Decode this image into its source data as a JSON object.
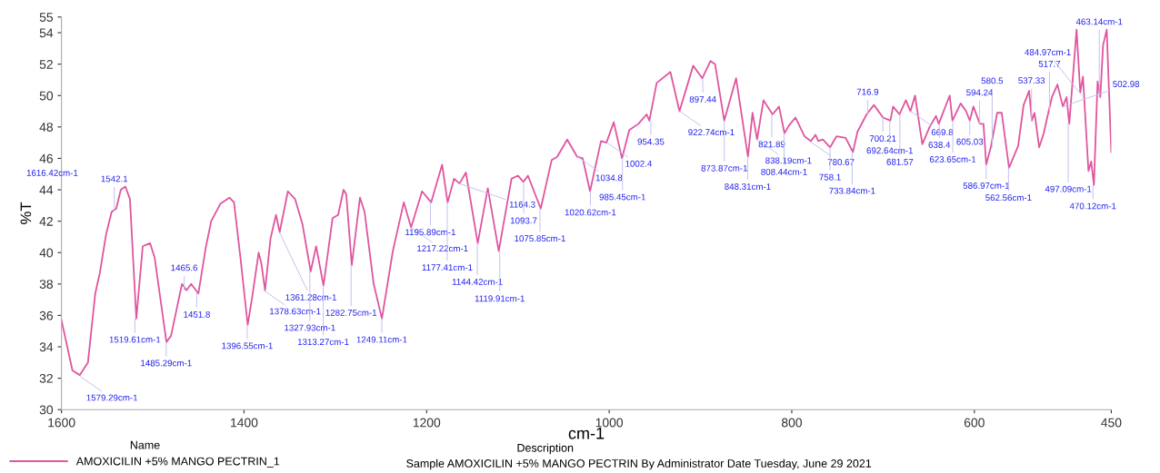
{
  "chart_data": {
    "type": "line",
    "xlabel": "cm-1",
    "ylabel": "%T",
    "legend_title": "Name",
    "legend": "bottom",
    "grid": false,
    "marker": "none",
    "line_style": "solid",
    "xlim": [
      1600,
      450
    ],
    "xticks": [
      1600,
      1400,
      1200,
      1000,
      800,
      600,
      450
    ],
    "ylim": [
      30,
      55
    ],
    "yticks": [
      30,
      32,
      34,
      36,
      38,
      40,
      42,
      44,
      46,
      48,
      50,
      52,
      54,
      55
    ],
    "series": [
      {
        "name": "AMOXICILIN +5% MANGO PECTRIN_1",
        "color": "#e0559f",
        "x": [
          1600,
          1588,
          1580,
          1571,
          1563,
          1558,
          1551,
          1545,
          1540,
          1535,
          1530,
          1525,
          1518,
          1511,
          1503,
          1498,
          1491,
          1485,
          1480,
          1468,
          1463,
          1458,
          1450,
          1442,
          1436,
          1426,
          1416,
          1411,
          1404,
          1396,
          1391,
          1384,
          1381,
          1377,
          1371,
          1365,
          1361,
          1352,
          1344,
          1336,
          1327,
          1321,
          1313,
          1303,
          1297,
          1291,
          1288,
          1282,
          1273,
          1268,
          1258,
          1249,
          1237,
          1225,
          1217,
          1205,
          1195,
          1183,
          1177,
          1170,
          1164,
          1157,
          1144,
          1133,
          1121,
          1107,
          1100,
          1094,
          1089,
          1075,
          1063,
          1057,
          1046,
          1035,
          1029,
          1021,
          1009,
          1003,
          995,
          986,
          978,
          968,
          959,
          956,
          948,
          933,
          923,
          908,
          898,
          889,
          884,
          874,
          861,
          848,
          843,
          838,
          831,
          821,
          814,
          808,
          803,
          796,
          786,
          779,
          774,
          771,
          766,
          758,
          751,
          741,
          733,
          728,
          718,
          710,
          700,
          692,
          689,
          682,
          675,
          670,
          665,
          657,
          649,
          642,
          639,
          627,
          624,
          615,
          609,
          605,
          601,
          594,
          590,
          587,
          582,
          575,
          570,
          562,
          552,
          546,
          540,
          537,
          534,
          529,
          524,
          519,
          515,
          509,
          503,
          499,
          496,
          488,
          484,
          481,
          475,
          472,
          469,
          465,
          462,
          459,
          455,
          450
        ],
        "values": [
          35.7,
          32.5,
          32.2,
          33.0,
          37.4,
          38.7,
          41.2,
          42.6,
          42.8,
          44.0,
          44.2,
          43.4,
          35.8,
          40.4,
          40.6,
          39.7,
          36.8,
          34.3,
          34.7,
          38.0,
          37.6,
          38.0,
          37.4,
          40.3,
          42.0,
          43.1,
          43.5,
          43.2,
          39.7,
          35.4,
          37.2,
          40.0,
          39.3,
          37.6,
          40.9,
          42.4,
          41.3,
          43.9,
          43.4,
          41.8,
          38.8,
          40.4,
          37.9,
          42.2,
          42.4,
          44.0,
          43.7,
          39.2,
          43.5,
          42.6,
          38.0,
          35.8,
          40.1,
          43.2,
          41.6,
          43.9,
          43.2,
          45.6,
          43.2,
          44.7,
          44.4,
          45.1,
          40.6,
          44.1,
          40.1,
          44.7,
          44.9,
          44.5,
          44.9,
          42.8,
          45.9,
          46.1,
          47.2,
          46.1,
          46.0,
          43.9,
          47.1,
          47.0,
          48.3,
          46.0,
          47.8,
          48.2,
          48.8,
          48.4,
          50.8,
          51.5,
          49.0,
          51.9,
          51.1,
          52.2,
          52.0,
          48.4,
          51.1,
          46.1,
          48.9,
          47.2,
          49.7,
          48.8,
          49.3,
          47.6,
          48.1,
          48.6,
          47.4,
          47.1,
          47.5,
          47.1,
          47.2,
          46.7,
          47.4,
          47.3,
          46.4,
          47.7,
          48.8,
          49.4,
          48.6,
          48.4,
          49.3,
          48.8,
          49.7,
          49.0,
          50.0,
          46.9,
          48.0,
          48.7,
          48.2,
          50.0,
          48.4,
          49.5,
          49.0,
          48.4,
          49.3,
          48.2,
          48.2,
          45.6,
          46.7,
          48.9,
          48.9,
          45.4,
          46.8,
          49.4,
          50.3,
          48.4,
          48.9,
          46.7,
          47.6,
          48.9,
          49.9,
          50.7,
          49.3,
          49.9,
          48.2,
          54.2,
          50.2,
          51.2,
          45.2,
          45.8,
          44.3,
          50.9,
          49.9,
          53.2,
          54.2,
          46.4
        ]
      }
    ],
    "annotations": [
      "1616.42cm-1",
      "Description",
      "Sample AMOXICILIN +5% MANGO PECTRIN By Administrator Date Tuesday, June 29 2021",
      {
        "text": "1579.29cm-1",
        "x": 1579.29,
        "y": 32.1
      },
      {
        "text": "1542.1",
        "x": 1542.1,
        "y": 42.7
      },
      {
        "text": "1519.61cm-1",
        "x": 1519.61,
        "y": 35.8
      },
      {
        "text": "1485.29cm-1",
        "x": 1485.29,
        "y": 34.3
      },
      {
        "text": "1465.6",
        "x": 1465.6,
        "y": 37.6
      },
      {
        "text": "1451.8",
        "x": 1451.8,
        "y": 37.4
      },
      {
        "text": "1396.55cm-1",
        "x": 1396.55,
        "y": 35.4
      },
      {
        "text": "1378.63cm-1",
        "x": 1378.63,
        "y": 37.6
      },
      {
        "text": "1361.28cm-1",
        "x": 1361.28,
        "y": 41.3
      },
      {
        "text": "1327.93cm-1",
        "x": 1327.93,
        "y": 38.8
      },
      {
        "text": "1313.27cm-1",
        "x": 1313.27,
        "y": 37.9
      },
      {
        "text": "1282.75cm-1",
        "x": 1282.75,
        "y": 39.2
      },
      {
        "text": "1249.11cm-1",
        "x": 1249.11,
        "y": 35.8
      },
      {
        "text": "1217.22cm-1",
        "x": 1217.22,
        "y": 41.6
      },
      {
        "text": "1195.89cm-1",
        "x": 1195.89,
        "y": 43.2
      },
      {
        "text": "1177.41cm-1",
        "x": 1177.41,
        "y": 43.2
      },
      {
        "text": "1164.3",
        "x": 1164.3,
        "y": 44.4
      },
      {
        "text": "1144.42cm-1",
        "x": 1144.42,
        "y": 40.6
      },
      {
        "text": "1119.91cm-1",
        "x": 1119.91,
        "y": 40.1
      },
      {
        "text": "1093.7",
        "x": 1093.7,
        "y": 44.5
      },
      {
        "text": "1075.85cm-1",
        "x": 1075.85,
        "y": 42.8
      },
      {
        "text": "1034.8",
        "x": 1034.8,
        "y": 46.1
      },
      {
        "text": "1020.62cm-1",
        "x": 1020.62,
        "y": 43.9
      },
      {
        "text": "1002.4",
        "x": 1002.4,
        "y": 47.0
      },
      {
        "text": "985.45cm-1",
        "x": 985.45,
        "y": 46.0
      },
      {
        "text": "954.35",
        "x": 954.35,
        "y": 48.4
      },
      {
        "text": "922.74cm-1",
        "x": 922.74,
        "y": 49.0
      },
      {
        "text": "897.44",
        "x": 897.44,
        "y": 51.1
      },
      {
        "text": "873.87cm-1",
        "x": 873.87,
        "y": 48.4
      },
      {
        "text": "848.31cm-1",
        "x": 848.31,
        "y": 46.1
      },
      {
        "text": "838.19cm-1",
        "x": 838.19,
        "y": 47.2
      },
      {
        "text": "821.89",
        "x": 821.89,
        "y": 48.8
      },
      {
        "text": "808.44cm-1",
        "x": 808.44,
        "y": 47.6
      },
      {
        "text": "780.67",
        "x": 780.67,
        "y": 47.1
      },
      {
        "text": "758.1",
        "x": 758.1,
        "y": 46.7
      },
      {
        "text": "733.84cm-1",
        "x": 733.84,
        "y": 46.4
      },
      {
        "text": "716.9",
        "x": 716.9,
        "y": 48.8
      },
      {
        "text": "700.21",
        "x": 700.21,
        "y": 48.6
      },
      {
        "text": "692.64cm-1",
        "x": 692.64,
        "y": 48.4
      },
      {
        "text": "681.57",
        "x": 681.57,
        "y": 48.8
      },
      {
        "text": "669.8",
        "x": 669.8,
        "y": 49.0
      },
      {
        "text": "638.4",
        "x": 638.4,
        "y": 48.2
      },
      {
        "text": "623.65cm-1",
        "x": 623.65,
        "y": 48.4
      },
      {
        "text": "605.03",
        "x": 605.03,
        "y": 48.4
      },
      {
        "text": "594.24",
        "x": 594.24,
        "y": 48.2
      },
      {
        "text": "586.97cm-1",
        "x": 586.97,
        "y": 45.6
      },
      {
        "text": "580.5",
        "x": 580.5,
        "y": 46.7
      },
      {
        "text": "562.56cm-1",
        "x": 562.56,
        "y": 45.4
      },
      {
        "text": "537.33",
        "x": 537.33,
        "y": 48.4
      },
      {
        "text": "517.7",
        "x": 517.7,
        "y": 48.9
      },
      {
        "text": "502.98",
        "x": 502.98,
        "y": 49.3
      },
      {
        "text": "497.09cm-1",
        "x": 497.09,
        "y": 48.2
      },
      {
        "text": "484.97cm-1",
        "x": 484.97,
        "y": 50.2
      },
      {
        "text": "470.12cm-1",
        "x": 470.12,
        "y": 44.3
      },
      {
        "text": "463.14cm-1",
        "x": 463.14,
        "y": 49.9
      }
    ]
  }
}
